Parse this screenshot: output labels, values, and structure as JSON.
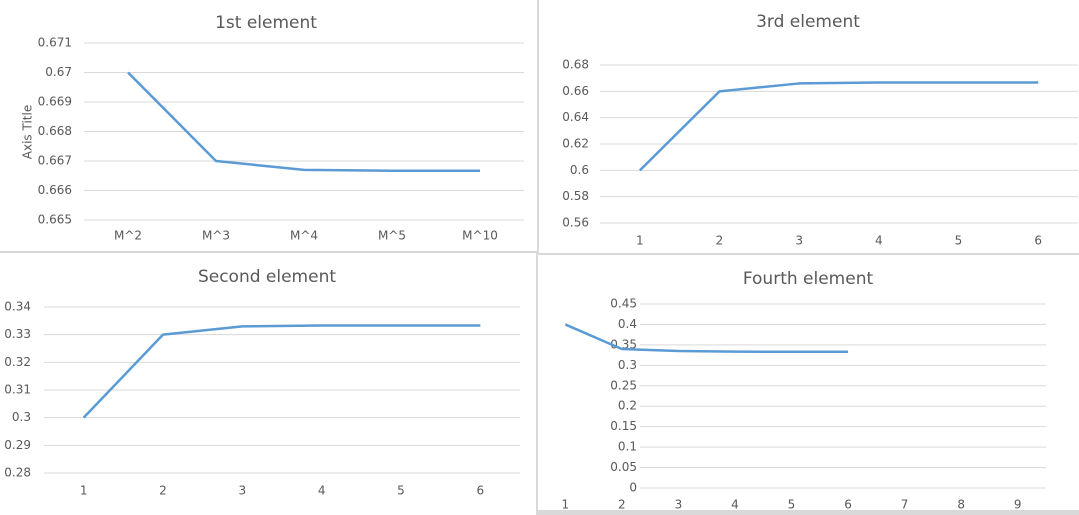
{
  "chart_data": [
    {
      "type": "line",
      "title": "1st element",
      "y_axis_label": "Axis Title",
      "categories": [
        "M^2",
        "M^3",
        "M^4",
        "M^5",
        "M^10"
      ],
      "values": [
        0.67,
        0.667,
        0.6667,
        0.66667,
        0.66667
      ],
      "color": "#5b9bd5",
      "ylim": [
        0.665,
        0.671
      ],
      "yticks": [
        0.665,
        0.666,
        0.667,
        0.668,
        0.669,
        0.67,
        0.671
      ],
      "grid": true
    },
    {
      "type": "line",
      "title": "3rd element",
      "categories": [
        "1",
        "2",
        "3",
        "4",
        "5",
        "6"
      ],
      "values": [
        0.6,
        0.66,
        0.666,
        0.6667,
        0.6667,
        0.6667
      ],
      "color": "#5b9bd5",
      "ylim": [
        0.56,
        0.68
      ],
      "yticks": [
        0.56,
        0.58,
        0.6,
        0.62,
        0.64,
        0.66,
        0.68
      ],
      "grid": true
    },
    {
      "type": "line",
      "title": "Second element",
      "categories": [
        "1",
        "2",
        "3",
        "4",
        "5",
        "6"
      ],
      "values": [
        0.3,
        0.33,
        0.333,
        0.3333,
        0.3333,
        0.3333
      ],
      "color": "#5b9bd5",
      "ylim": [
        0.28,
        0.34
      ],
      "yticks": [
        0.28,
        0.29,
        0.3,
        0.31,
        0.32,
        0.33,
        0.34
      ],
      "grid": true
    },
    {
      "type": "line",
      "title": "Fourth  element",
      "categories": [
        "1",
        "2",
        "3",
        "4",
        "5",
        "6",
        "7",
        "8",
        "9"
      ],
      "values": [
        0.4,
        0.34,
        0.335,
        0.3334,
        0.3333,
        0.3333,
        null,
        null,
        null
      ],
      "color": "#5b9bd5",
      "ylim": [
        0,
        0.45
      ],
      "yticks": [
        0,
        0.05,
        0.1,
        0.15,
        0.2,
        0.25,
        0.3,
        0.35,
        0.4,
        0.45
      ],
      "grid": true
    }
  ]
}
